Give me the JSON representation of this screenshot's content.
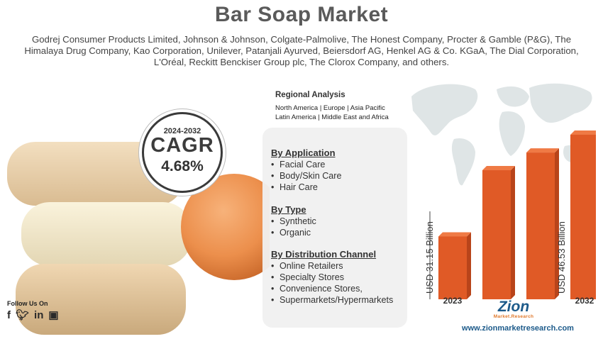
{
  "title": "Bar Soap Market",
  "companies": "Godrej Consumer Products Limited, Johnson & Johnson, Colgate-Palmolive, The Honest Company, Procter & Gamble (P&G), The Himalaya Drug Company, Kao Corporation, Unilever, Patanjali Ayurved, Beiersdorf AG, Henkel AG & Co. KGaA, The Dial Corporation, L'Oréal, Reckitt Benckiser Group plc, The Clorox Company, and others.",
  "cagr": {
    "years": "2024-2032",
    "label": "CAGR",
    "value": "4.68%"
  },
  "regional": {
    "heading": "Regional Analysis",
    "line1": "North America | Europe | Asia Pacific",
    "line2": "Latin America | Middle East and Africa"
  },
  "segments": {
    "application": {
      "heading": "By Application",
      "items": [
        "Facial Care",
        "Body/Skin Care",
        "Hair Care"
      ]
    },
    "type": {
      "heading": "By Type",
      "items": [
        "Synthetic",
        "Organic"
      ]
    },
    "distribution": {
      "heading": "By Distribution Channel",
      "items": [
        "Online Retailers",
        "Specialty Stores",
        "Convenience Stores,",
        "Supermarkets/Hypermarkets"
      ]
    }
  },
  "chart_data": {
    "type": "bar",
    "categories": [
      "2023",
      "",
      "",
      "2032"
    ],
    "values": [
      31.15,
      36.5,
      41.5,
      46.53
    ],
    "labels": [
      "USD 31.15 Billion",
      "",
      "",
      "USD 46.53 Billion"
    ],
    "colors": {
      "bar": "#e05a26",
      "bar_side": "#b8441a"
    }
  },
  "social": {
    "label": "Follow Us On",
    "icons": [
      "facebook-icon",
      "twitter-icon",
      "linkedin-icon",
      "instagram-icon"
    ]
  },
  "brand": {
    "name": "Zion",
    "sub": "Market.Research",
    "website": "www.zionmarketresearch.com"
  }
}
